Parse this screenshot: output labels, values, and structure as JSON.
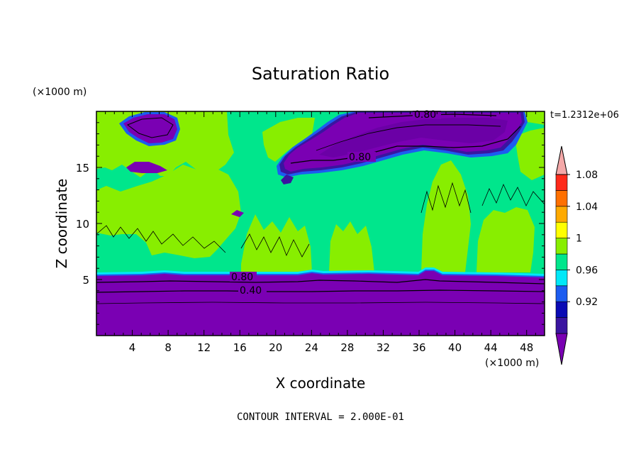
{
  "chart_data": {
    "type": "heatmap",
    "title": "Saturation Ratio",
    "xlabel": "X coordinate",
    "ylabel": "Z coordinate",
    "x_unit": "(×1000 m)",
    "y_unit": "(×1000 m)",
    "time_label": "t=1.2312e+06",
    "footer": "CONTOUR INTERVAL = 2.000E-01",
    "xlim": [
      0,
      50
    ],
    "ylim": [
      0,
      20
    ],
    "x_ticks": [
      4,
      8,
      12,
      16,
      20,
      24,
      28,
      32,
      36,
      40,
      44,
      48
    ],
    "y_ticks": [
      5,
      10,
      15
    ],
    "colorbar": {
      "levels": [
        0.92,
        0.96,
        1,
        1.04,
        1.08
      ],
      "level_labels": [
        "0.92",
        "0.96",
        "1",
        "1.04",
        "1.08"
      ],
      "colors": [
        "#7a00b3",
        "#3a14a0",
        "#0a0ab4",
        "#1c5cf0",
        "#00e8f8",
        "#00e68c",
        "#88ee00",
        "#ffff00",
        "#ffaa00",
        "#ff7000",
        "#ff2a1a",
        "#f4a8a8"
      ]
    },
    "contour_labels": [
      {
        "text": "0.80",
        "x": 16.5,
        "y": 5.1
      },
      {
        "text": "0.40",
        "x": 17.0,
        "y": 4.0
      },
      {
        "text": "0.80",
        "x": 29.3,
        "y": 15.5
      },
      {
        "text": "0.80",
        "x": 36.5,
        "y": 19.5
      }
    ],
    "regions": {
      "base_layer": {
        "value": "<0.92",
        "z_top": 5.4
      },
      "saturated_layer": {
        "value": "1.00",
        "z_bottom": 5.4,
        "z_top": 20
      },
      "upper_dry_cloud": {
        "value": "<0.92",
        "x": [
          20,
          48
        ],
        "z": [
          14,
          20
        ]
      },
      "small_dry_patch": {
        "value": "<0.92",
        "x": [
          3,
          8.5
        ],
        "z": [
          17,
          19.5
        ]
      }
    }
  }
}
